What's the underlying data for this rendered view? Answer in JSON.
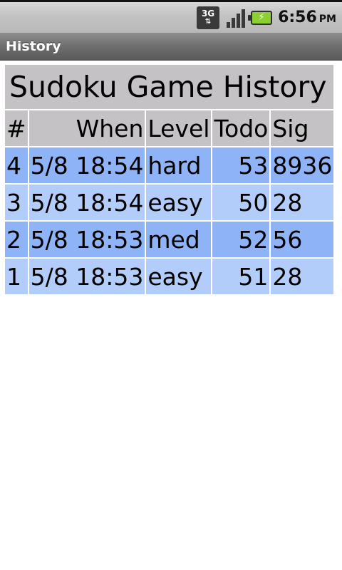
{
  "status_bar": {
    "network_type": "3G",
    "time": "6:56",
    "ampm": "PM",
    "icons": [
      "3g-icon",
      "signal-icon",
      "battery-charging-icon"
    ]
  },
  "title_bar": {
    "title": "History"
  },
  "table": {
    "caption": "Sudoku Game History",
    "headers": [
      "#",
      "When",
      "Level",
      "Todo",
      "Sig"
    ],
    "rows": [
      [
        "4",
        "5/8 18:54",
        "hard",
        "53",
        "8936"
      ],
      [
        "3",
        "5/8 18:54",
        "easy",
        "50",
        "28"
      ],
      [
        "2",
        "5/8 18:53",
        "med",
        "52",
        "56"
      ],
      [
        "1",
        "5/8 18:53",
        "easy",
        "51",
        "28"
      ]
    ]
  },
  "colors": {
    "header_bg": "#c4c2c4",
    "row_dark": "#8fb3f7",
    "row_light": "#b3cdfb"
  }
}
